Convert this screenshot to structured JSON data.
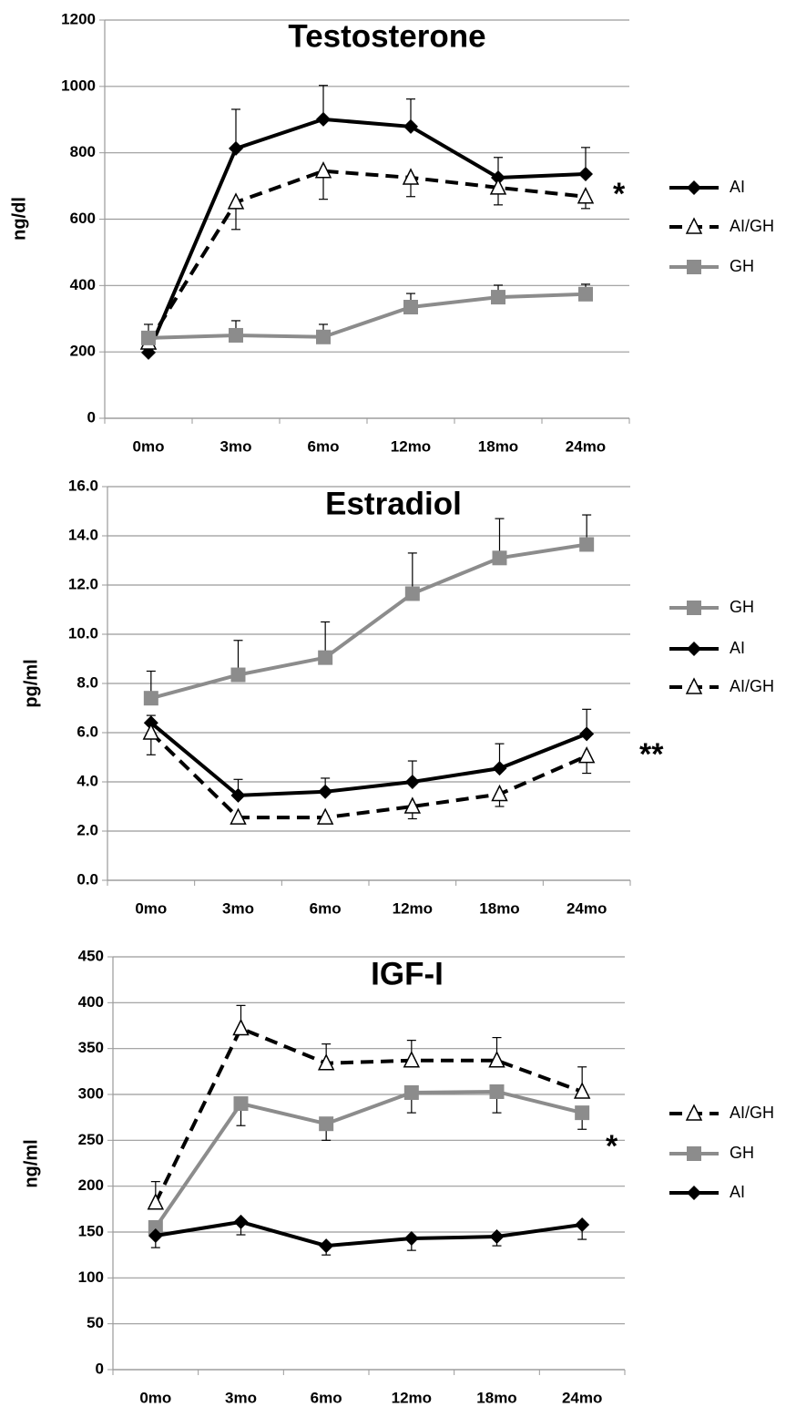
{
  "chart_data": [
    {
      "type": "line",
      "title": "Testosterone",
      "y_label": "ng/dl",
      "categories": [
        "0mo",
        "3mo",
        "6mo",
        "12mo",
        "18mo",
        "24mo"
      ],
      "ylim": [
        0,
        1200
      ],
      "yticks": [
        0,
        200,
        400,
        600,
        800,
        1000,
        1200
      ],
      "grid": true,
      "legend": "right",
      "annotation": "*",
      "series": [
        {
          "name": "AI",
          "color": "#000000",
          "marker": "diamond",
          "dashed": false,
          "error_direction": "up",
          "values": [
            198,
            813,
            901,
            879,
            725,
            736
          ],
          "error": [
            10,
            118,
            102,
            83,
            61,
            80
          ]
        },
        {
          "name": "AI/GH",
          "color": "#000000",
          "marker": "triangle",
          "dashed": true,
          "error_direction": "down",
          "values": [
            228,
            651,
            745,
            725,
            695,
            668
          ],
          "error": [
            10,
            82,
            85,
            57,
            52,
            36
          ]
        },
        {
          "name": "GH",
          "color": "#8c8c8c",
          "marker": "square",
          "dashed": false,
          "error_direction": "up",
          "values": [
            242,
            250,
            245,
            335,
            365,
            374
          ],
          "error": [
            41,
            44,
            38,
            41,
            36,
            30
          ]
        }
      ]
    },
    {
      "type": "line",
      "title": "Estradiol",
      "y_label": "pg/ml",
      "categories": [
        "0mo",
        "3mo",
        "6mo",
        "12mo",
        "18mo",
        "24mo"
      ],
      "ylim": [
        0,
        16
      ],
      "yticks": [
        {
          "value": 0,
          "label": "0.0"
        },
        {
          "value": 2,
          "label": "2.0"
        },
        {
          "value": 4,
          "label": "4.0"
        },
        {
          "value": 6,
          "label": "6.0"
        },
        {
          "value": 8,
          "label": "8.0"
        },
        {
          "value": 10,
          "label": "10.0"
        },
        {
          "value": 12,
          "label": "12.0"
        },
        {
          "value": 14,
          "label": "14.0"
        },
        {
          "value": 16,
          "label": "16.0"
        }
      ],
      "grid": true,
      "legend": "right",
      "annotation": "**",
      "series": [
        {
          "name": "GH",
          "color": "#8c8c8c",
          "marker": "square",
          "dashed": false,
          "error_direction": "up",
          "values": [
            7.4,
            8.35,
            9.05,
            11.65,
            13.1,
            13.65
          ],
          "error": [
            1.1,
            1.4,
            1.45,
            1.65,
            1.6,
            1.2
          ]
        },
        {
          "name": "AI",
          "color": "#000000",
          "marker": "diamond",
          "dashed": false,
          "error_direction": "up",
          "values": [
            6.4,
            3.45,
            3.6,
            4.0,
            4.55,
            5.95
          ],
          "error": [
            0.3,
            0.65,
            0.55,
            0.85,
            1.0,
            1.0
          ]
        },
        {
          "name": "AI/GH",
          "color": "#000000",
          "marker": "triangle",
          "dashed": true,
          "error_direction": "down",
          "values": [
            6.0,
            2.55,
            2.55,
            3.0,
            3.5,
            5.05
          ],
          "error": [
            0.9,
            0.2,
            0.2,
            0.5,
            0.5,
            0.7
          ]
        }
      ]
    },
    {
      "type": "line",
      "title": "IGF-I",
      "y_label": "ng/ml",
      "categories": [
        "0mo",
        "3mo",
        "6mo",
        "12mo",
        "18mo",
        "24mo"
      ],
      "ylim": [
        0,
        450
      ],
      "yticks": [
        0,
        50,
        100,
        150,
        200,
        250,
        300,
        350,
        400,
        450
      ],
      "grid": true,
      "legend": "right",
      "annotation": "*",
      "series": [
        {
          "name": "AI/GH",
          "color": "#000000",
          "marker": "triangle",
          "dashed": true,
          "error_direction": "up",
          "values": [
            182,
            372,
            334,
            337,
            337,
            303
          ],
          "error": [
            23,
            25,
            21,
            22,
            25,
            27
          ]
        },
        {
          "name": "GH",
          "color": "#8c8c8c",
          "marker": "square",
          "dashed": false,
          "error_direction": "down",
          "values": [
            155,
            290,
            268,
            302,
            303,
            280
          ],
          "error": [
            10,
            24,
            18,
            22,
            23,
            18
          ]
        },
        {
          "name": "AI",
          "color": "#000000",
          "marker": "diamond",
          "dashed": false,
          "error_direction": "down",
          "values": [
            146,
            161,
            135,
            143,
            145,
            158
          ],
          "error": [
            13,
            14,
            10,
            13,
            10,
            16
          ]
        }
      ]
    }
  ]
}
